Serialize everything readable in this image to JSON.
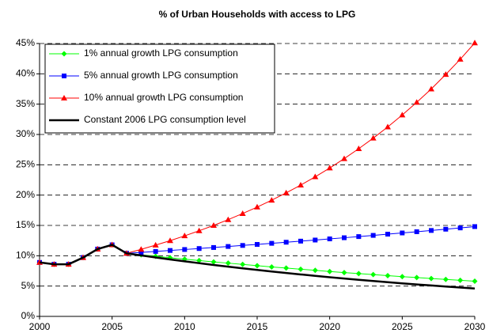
{
  "chart_data": {
    "type": "line",
    "title": "% of Urban Households with access to LPG",
    "x": [
      2000,
      2001,
      2002,
      2003,
      2004,
      2005,
      2006,
      2007,
      2008,
      2009,
      2010,
      2011,
      2012,
      2013,
      2014,
      2015,
      2016,
      2017,
      2018,
      2019,
      2020,
      2021,
      2022,
      2023,
      2024,
      2025,
      2026,
      2027,
      2028,
      2029,
      2030
    ],
    "xlim": [
      2000,
      2030
    ],
    "xticks": [
      2000,
      2005,
      2010,
      2015,
      2020,
      2025,
      2030
    ],
    "ylim": [
      0,
      45
    ],
    "yticks": [
      {
        "value": 0,
        "label": "0%"
      },
      {
        "value": 5,
        "label": "5%"
      },
      {
        "value": 10,
        "label": "10%"
      },
      {
        "value": 15,
        "label": "15%"
      },
      {
        "value": 20,
        "label": "20%"
      },
      {
        "value": 25,
        "label": "25%"
      },
      {
        "value": 30,
        "label": "30%"
      },
      {
        "value": 35,
        "label": "35%"
      },
      {
        "value": 40,
        "label": "40%"
      },
      {
        "value": 45,
        "label": "45%"
      }
    ],
    "grid": true,
    "legend": "upper left",
    "series": [
      {
        "name": "1% annual growth LPG consumption",
        "color": "#00ff00",
        "marker": "diamond",
        "values": [
          8.9,
          8.6,
          8.6,
          9.7,
          11.1,
          11.8,
          10.4,
          10.15,
          9.91,
          9.67,
          9.44,
          9.21,
          8.99,
          8.78,
          8.57,
          8.36,
          8.16,
          7.97,
          7.78,
          7.59,
          7.41,
          7.23,
          7.06,
          6.89,
          6.72,
          6.56,
          6.4,
          6.25,
          6.1,
          5.95,
          5.81
        ]
      },
      {
        "name": "5% annual growth LPG consumption",
        "color": "#0000ff",
        "marker": "square",
        "values": [
          8.9,
          8.6,
          8.6,
          9.7,
          11.1,
          11.8,
          10.4,
          10.55,
          10.71,
          10.87,
          11.03,
          11.19,
          11.36,
          11.53,
          11.7,
          11.87,
          12.05,
          12.23,
          12.41,
          12.59,
          12.78,
          12.97,
          13.16,
          13.36,
          13.56,
          13.76,
          13.96,
          14.17,
          14.38,
          14.59,
          14.81
        ]
      },
      {
        "name": "10% annual growth LPG consumption",
        "color": "#ff0000",
        "marker": "triangle",
        "values": [
          8.9,
          8.6,
          8.6,
          9.7,
          11.1,
          11.8,
          10.4,
          11.06,
          11.75,
          12.49,
          13.28,
          14.12,
          15.0,
          15.95,
          16.96,
          18.03,
          19.16,
          20.37,
          21.65,
          23.02,
          24.47,
          26.01,
          27.65,
          29.39,
          31.24,
          33.21,
          35.3,
          37.5,
          39.9,
          42.4,
          45.1
        ]
      },
      {
        "name": "Constant 2006 LPG consumption level",
        "color": "#000000",
        "values": [
          8.9,
          8.6,
          8.6,
          9.7,
          11.1,
          11.8,
          10.4,
          10.05,
          9.72,
          9.39,
          9.08,
          8.78,
          8.48,
          8.2,
          7.92,
          7.66,
          7.4,
          7.16,
          6.92,
          6.69,
          6.46,
          6.25,
          6.04,
          5.84,
          5.64,
          5.45,
          5.27,
          5.1,
          4.93,
          4.76,
          4.6
        ]
      }
    ]
  }
}
